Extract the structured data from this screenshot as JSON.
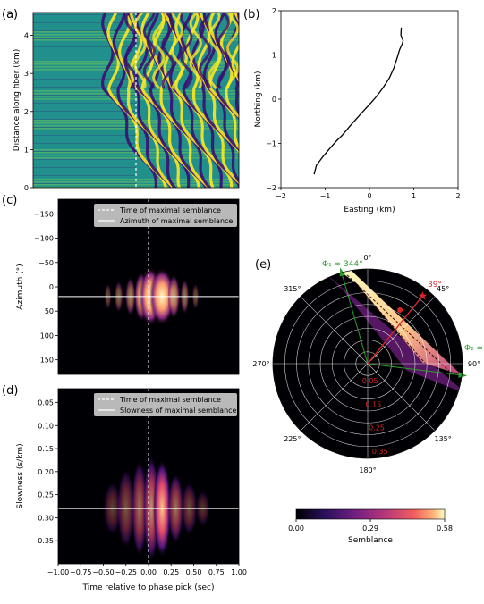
{
  "chart_data": [
    {
      "panel": "(a)",
      "type": "heatmap",
      "ylabel": "Distance along fiber (km)",
      "xlim": [
        -1.0,
        1.0
      ],
      "ylim": [
        0,
        4.6
      ],
      "yticks": [
        "0",
        "1",
        "2",
        "3",
        "4"
      ],
      "pick_time": 0.0,
      "colors": [
        "#3b0f70",
        "#21918c",
        "#7ad151",
        "#fde725"
      ]
    },
    {
      "panel": "(b)",
      "type": "line",
      "xlabel": "Easting (km)",
      "ylabel": "Northing (km)",
      "xlim": [
        -2,
        2
      ],
      "ylim": [
        -2,
        2
      ],
      "xticks": [
        "−2",
        "−1",
        "0",
        "1",
        "2"
      ],
      "yticks": [
        "−2",
        "−1",
        "0",
        "1",
        "2"
      ],
      "x": [
        -1.25,
        -1.2,
        -1.05,
        -0.9,
        -0.75,
        -0.6,
        -0.45,
        -0.3,
        -0.15,
        0.0,
        0.15,
        0.3,
        0.45,
        0.55,
        0.62,
        0.68,
        0.74,
        0.76,
        0.71,
        0.72
      ],
      "y": [
        -1.7,
        -1.5,
        -1.3,
        -1.12,
        -0.95,
        -0.8,
        -0.62,
        -0.45,
        -0.28,
        -0.12,
        0.05,
        0.25,
        0.48,
        0.7,
        0.92,
        1.12,
        1.25,
        1.32,
        1.45,
        1.62
      ]
    },
    {
      "panel": "(c)",
      "type": "heatmap",
      "ylabel": "Azimuth (°)",
      "xlim": [
        -1.0,
        1.0
      ],
      "ylim": [
        -180,
        180
      ],
      "yticks": [
        "−150",
        "−100",
        "−50",
        "0",
        "50",
        "100",
        "150"
      ],
      "pick_time": 0.0,
      "max_line_value": 20,
      "legend": [
        "Time of maximal semblance",
        "Azimuth of maximal semblance"
      ]
    },
    {
      "panel": "(d)",
      "type": "heatmap",
      "xlabel": "Time relative to phase pick (sec)",
      "ylabel": "Slowness (s/km)",
      "xlim": [
        -1.0,
        1.0
      ],
      "ylim": [
        0.02,
        0.4
      ],
      "xticks": [
        "−1.00",
        "−0.75",
        "−0.50",
        "−0.25",
        "0.00",
        "0.25",
        "0.50",
        "0.75",
        "1.00"
      ],
      "yticks": [
        "0.05",
        "0.10",
        "0.15",
        "0.20",
        "0.25",
        "0.30",
        "0.35"
      ],
      "pick_time": 0.0,
      "max_line_value": 0.28,
      "legend": [
        "Time of maximal semblance",
        "Slowness of maximal semblance"
      ]
    },
    {
      "panel": "(e)",
      "type": "heatmap",
      "projection": "polar",
      "angle_labels": [
        "0°",
        "45°",
        "90°",
        "135°",
        "180°",
        "225°",
        "270°",
        "315°"
      ],
      "radial_labels": [
        "0.05",
        "0.15",
        "0.25",
        "0.35"
      ],
      "max_azimuth_label": "39°",
      "max_azimuth": 39,
      "phi1_label": "Φ₁ = 344°",
      "phi1": 344,
      "phi2_label": "Φ₂ =",
      "phi2": 97
    }
  ],
  "colorbar": {
    "label": "Semblance",
    "ticks": [
      "0.00",
      "0.29",
      "0.58"
    ],
    "vmin": 0.0,
    "vmax": 0.58
  }
}
